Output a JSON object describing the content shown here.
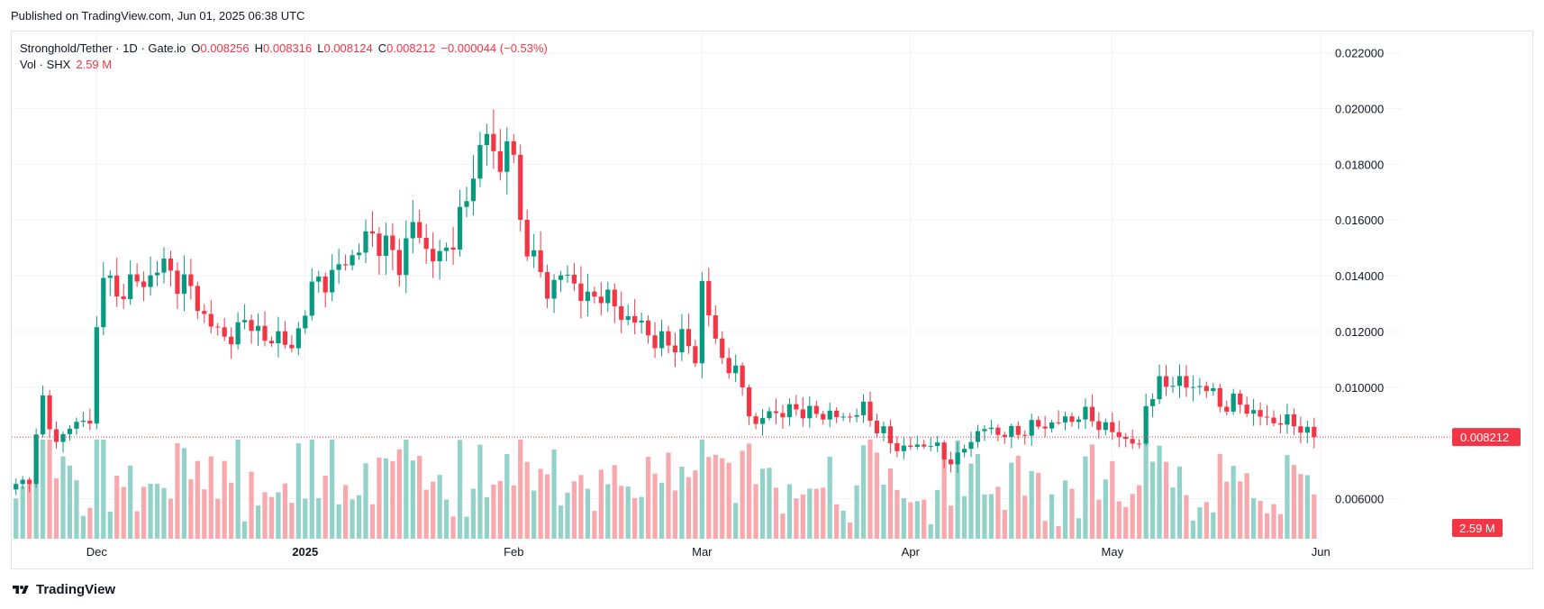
{
  "header": {
    "published": "Published on TradingView.com, Jun 01, 2025 06:38 UTC"
  },
  "legend": {
    "symbol": "Stronghold/Tether · 1D · Gate.io",
    "o_label": "O",
    "o_value": "0.008256",
    "h_label": "H",
    "h_value": "0.008316",
    "l_label": "L",
    "l_value": "0.008124",
    "c_label": "C",
    "c_value": "0.008212",
    "change": "−0.000044 (−0.53%)",
    "vol_label": "Vol · SHX",
    "vol_value": "2.59 M"
  },
  "price_badge": "0.008212",
  "volume_badge": "2.59 M",
  "brand": {
    "name": "TradingView"
  },
  "colors": {
    "up": "#089981",
    "down": "#f23645",
    "up_vol": "#92d2c9",
    "down_vol": "#f7a9ae",
    "grid": "#f0f3fa"
  },
  "chart_data": {
    "type": "candlestick",
    "title": "Stronghold/Tether · 1D · Gate.io",
    "ylim": [
      0.0045,
      0.0226
    ],
    "y_ticks": [
      "0.022000",
      "0.020000",
      "0.018000",
      "0.016000",
      "0.014000",
      "0.012000",
      "0.010000",
      "0.006000"
    ],
    "y_tick_values": [
      0.022,
      0.02,
      0.018,
      0.016,
      0.014,
      0.012,
      0.01,
      0.006
    ],
    "x_labels": [
      {
        "label": "Dec",
        "index": 12
      },
      {
        "label": "2025",
        "index": 43
      },
      {
        "label": "Feb",
        "index": 74
      },
      {
        "label": "Mar",
        "index": 102
      },
      {
        "label": "Apr",
        "index": 133
      },
      {
        "label": "May",
        "index": 163
      },
      {
        "label": "Jun",
        "index": 194
      }
    ],
    "last_price": 0.008212,
    "anchors": [
      [
        0,
        0.0064
      ],
      [
        2,
        0.0068
      ],
      [
        4,
        0.0095
      ],
      [
        6,
        0.008
      ],
      [
        8,
        0.0085
      ],
      [
        10,
        0.009
      ],
      [
        11,
        0.0085
      ],
      [
        12,
        0.012
      ],
      [
        13,
        0.0145
      ],
      [
        15,
        0.013
      ],
      [
        17,
        0.014
      ],
      [
        19,
        0.0135
      ],
      [
        21,
        0.0145
      ],
      [
        23,
        0.014
      ],
      [
        25,
        0.0138
      ],
      [
        27,
        0.013
      ],
      [
        29,
        0.0122
      ],
      [
        31,
        0.0118
      ],
      [
        33,
        0.012
      ],
      [
        35,
        0.0125
      ],
      [
        37,
        0.0115
      ],
      [
        39,
        0.012
      ],
      [
        41,
        0.0112
      ],
      [
        43,
        0.013
      ],
      [
        45,
        0.0138
      ],
      [
        47,
        0.014
      ],
      [
        49,
        0.0145
      ],
      [
        51,
        0.015
      ],
      [
        53,
        0.0155
      ],
      [
        55,
        0.015
      ],
      [
        57,
        0.0145
      ],
      [
        59,
        0.0158
      ],
      [
        61,
        0.015
      ],
      [
        63,
        0.0145
      ],
      [
        65,
        0.0155
      ],
      [
        67,
        0.0165
      ],
      [
        68,
        0.018
      ],
      [
        70,
        0.019
      ],
      [
        72,
        0.0178
      ],
      [
        73,
        0.0192
      ],
      [
        74,
        0.0178
      ],
      [
        75,
        0.016
      ],
      [
        77,
        0.0145
      ],
      [
        79,
        0.0135
      ],
      [
        81,
        0.014
      ],
      [
        83,
        0.0138
      ],
      [
        85,
        0.013
      ],
      [
        87,
        0.0135
      ],
      [
        89,
        0.0128
      ],
      [
        91,
        0.0125
      ],
      [
        93,
        0.0122
      ],
      [
        95,
        0.0117
      ],
      [
        97,
        0.0115
      ],
      [
        99,
        0.0118
      ],
      [
        101,
        0.011
      ],
      [
        102,
        0.0138
      ],
      [
        104,
        0.0115
      ],
      [
        106,
        0.0108
      ],
      [
        108,
        0.01
      ],
      [
        110,
        0.0085
      ],
      [
        112,
        0.0092
      ],
      [
        114,
        0.009
      ],
      [
        116,
        0.0093
      ],
      [
        118,
        0.009
      ],
      [
        120,
        0.0091
      ],
      [
        122,
        0.0089
      ],
      [
        124,
        0.009
      ],
      [
        126,
        0.0092
      ],
      [
        128,
        0.0086
      ],
      [
        130,
        0.008
      ],
      [
        132,
        0.0078
      ],
      [
        134,
        0.0079
      ],
      [
        136,
        0.008
      ],
      [
        138,
        0.0075
      ],
      [
        140,
        0.0074
      ],
      [
        142,
        0.0082
      ],
      [
        144,
        0.0085
      ],
      [
        146,
        0.0084
      ],
      [
        148,
        0.0083
      ],
      [
        150,
        0.0085
      ],
      [
        152,
        0.0086
      ],
      [
        154,
        0.0087
      ],
      [
        156,
        0.0088
      ],
      [
        158,
        0.009
      ],
      [
        160,
        0.0089
      ],
      [
        162,
        0.0085
      ],
      [
        164,
        0.0083
      ],
      [
        166,
        0.008
      ],
      [
        167,
        0.0078
      ],
      [
        168,
        0.0095
      ],
      [
        170,
        0.01
      ],
      [
        172,
        0.0103
      ],
      [
        174,
        0.01
      ],
      [
        176,
        0.0101
      ],
      [
        178,
        0.0097
      ],
      [
        180,
        0.0093
      ],
      [
        182,
        0.0095
      ],
      [
        184,
        0.009
      ],
      [
        186,
        0.0089
      ],
      [
        188,
        0.0087
      ],
      [
        190,
        0.0088
      ],
      [
        192,
        0.00826
      ],
      [
        193,
        0.008212
      ]
    ],
    "volume_range": [
      0,
      2.6
    ]
  }
}
